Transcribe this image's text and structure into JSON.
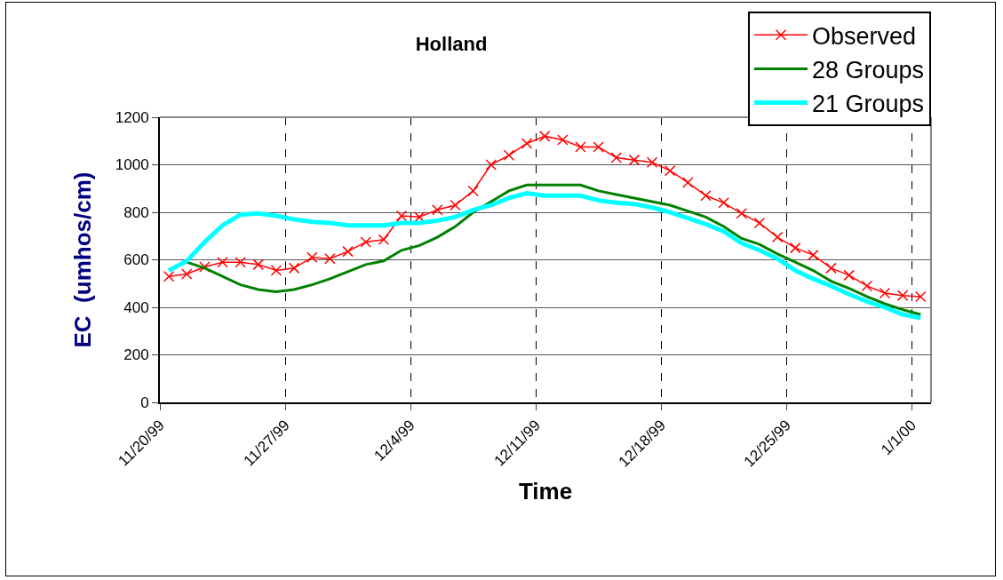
{
  "chart_data": {
    "type": "line",
    "title": "Holland",
    "xlabel": "Time",
    "ylabel": "EC  (umhos/cm)",
    "x": [
      "1999-11-20T12:00",
      "1999-11-21T12:00",
      "1999-11-22T12:00",
      "1999-11-23T12:00",
      "1999-11-24T12:00",
      "1999-11-25T12:00",
      "1999-11-26T12:00",
      "1999-11-27T12:00",
      "1999-11-28T12:00",
      "1999-11-29T12:00",
      "1999-11-30T12:00",
      "1999-12-01T12:00",
      "1999-12-02T12:00",
      "1999-12-03T12:00",
      "1999-12-04T12:00",
      "1999-12-05T12:00",
      "1999-12-06T12:00",
      "1999-12-07T12:00",
      "1999-12-08T12:00",
      "1999-12-09T12:00",
      "1999-12-10T12:00",
      "1999-12-11T12:00",
      "1999-12-12T12:00",
      "1999-12-13T12:00",
      "1999-12-14T12:00",
      "1999-12-15T12:00",
      "1999-12-16T12:00",
      "1999-12-17T12:00",
      "1999-12-18T12:00",
      "1999-12-19T12:00",
      "1999-12-20T12:00",
      "1999-12-21T12:00",
      "1999-12-22T12:00",
      "1999-12-23T12:00",
      "1999-12-24T12:00",
      "1999-12-25T12:00",
      "1999-12-26T12:00",
      "1999-12-27T12:00",
      "1999-12-28T12:00",
      "1999-12-29T12:00",
      "1999-12-30T12:00",
      "1999-12-31T12:00",
      "2000-01-01T12:00"
    ],
    "series": [
      {
        "name": "Observed",
        "color": "#ff0000",
        "marker": "cross",
        "values": [
          530,
          540,
          570,
          590,
          590,
          580,
          555,
          565,
          610,
          605,
          635,
          675,
          685,
          785,
          780,
          810,
          830,
          890,
          1000,
          1040,
          1090,
          1120,
          1105,
          1075,
          1075,
          1030,
          1020,
          1010,
          975,
          925,
          870,
          840,
          795,
          755,
          695,
          650,
          620,
          565,
          535,
          490,
          460,
          450,
          445
        ]
      },
      {
        "name": "28 Groups",
        "color": "#008000",
        "marker": "none",
        "values": [
          null,
          590,
          565,
          530,
          495,
          475,
          465,
          475,
          495,
          520,
          550,
          580,
          595,
          640,
          660,
          695,
          740,
          800,
          845,
          890,
          915,
          915,
          915,
          915,
          890,
          875,
          860,
          845,
          830,
          805,
          780,
          740,
          690,
          665,
          625,
          590,
          555,
          510,
          480,
          445,
          415,
          390,
          370
        ]
      },
      {
        "name": "21 Groups",
        "color": "#00ffff",
        "marker": "none",
        "values": [
          555,
          595,
          675,
          745,
          790,
          795,
          785,
          770,
          760,
          755,
          745,
          745,
          745,
          755,
          755,
          765,
          780,
          810,
          830,
          860,
          880,
          870,
          870,
          870,
          850,
          840,
          835,
          820,
          800,
          775,
          750,
          720,
          670,
          640,
          605,
          555,
          520,
          490,
          455,
          425,
          400,
          370,
          355
        ]
      }
    ],
    "xlim": [
      "1999-11-20",
      "2000-01-02T02:00"
    ],
    "xticks": [
      {
        "value": "1999-11-20",
        "label": "11/20/99"
      },
      {
        "value": "1999-11-27",
        "label": "11/27/99"
      },
      {
        "value": "1999-12-04",
        "label": "12/4/99"
      },
      {
        "value": "1999-12-11",
        "label": "12/11/99"
      },
      {
        "value": "1999-12-18",
        "label": "12/18/99"
      },
      {
        "value": "1999-12-25",
        "label": "12/25/99"
      },
      {
        "value": "2000-01-01",
        "label": "1/1/00"
      }
    ],
    "ylim": [
      0,
      1200
    ],
    "yticks": [
      0,
      200,
      400,
      600,
      800,
      1000,
      1200
    ],
    "grid": true,
    "legend": "top right"
  }
}
